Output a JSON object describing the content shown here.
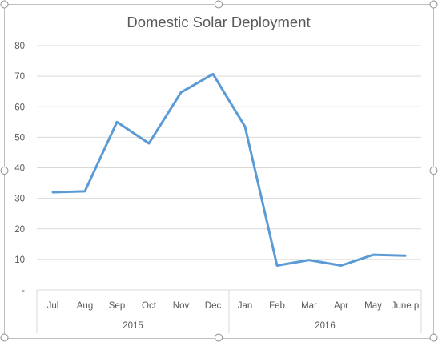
{
  "chart_data": {
    "type": "line",
    "title": "Domestic Solar Deployment",
    "xlabel": "",
    "ylabel": "",
    "ylim": [
      0,
      80
    ],
    "yticks": [
      0,
      10,
      20,
      30,
      40,
      50,
      60,
      70,
      80
    ],
    "ytick_labels": [
      "-",
      "10",
      "20",
      "30",
      "40",
      "50",
      "60",
      "70",
      "80"
    ],
    "grid": true,
    "legend": "none",
    "categories": [
      "Jul",
      "Aug",
      "Sep",
      "Oct",
      "Nov",
      "Dec",
      "Jan",
      "Feb",
      "Mar",
      "Apr",
      "May",
      "June p"
    ],
    "groups": [
      {
        "label": "2015",
        "count": 6
      },
      {
        "label": "2016",
        "count": 6
      }
    ],
    "series": [
      {
        "values": [
          32.0,
          32.3,
          55.0,
          48.0,
          64.7,
          70.7,
          53.5,
          8.0,
          9.8,
          8.0,
          11.5,
          11.2
        ],
        "color": "#5b9bd5"
      }
    ]
  }
}
